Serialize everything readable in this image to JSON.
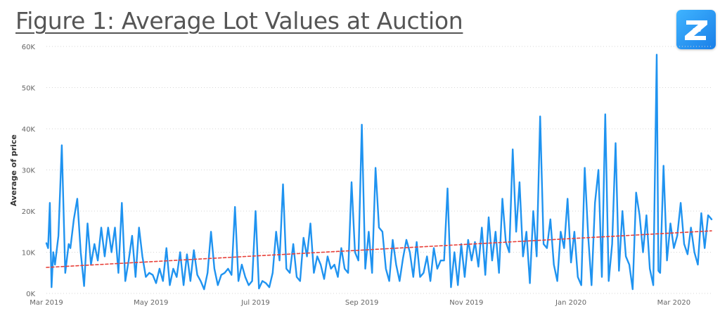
{
  "header": {
    "title": "Figure 1: Average Lot Values at Auction",
    "logo_icon": "z-logo-icon"
  },
  "chart_data": {
    "type": "line",
    "title": "Figure 1: Average Lot Values at Auction",
    "xlabel": "",
    "ylabel": "Average of price",
    "ylim": [
      0,
      60000
    ],
    "yticks": [
      0,
      10000,
      20000,
      30000,
      40000,
      50000,
      60000
    ],
    "ytick_labels": [
      "0K",
      "10K",
      "20K",
      "30K",
      "40K",
      "50K",
      "60K"
    ],
    "xlim": [
      "2019-03-01",
      "2020-03-23"
    ],
    "xticks": [
      "2019-03-01",
      "2019-05-01",
      "2019-07-01",
      "2019-09-01",
      "2019-11-01",
      "2020-01-01",
      "2020-03-01"
    ],
    "xtick_labels": [
      "Mar 2019",
      "May 2019",
      "Jul 2019",
      "Sep 2019",
      "Nov 2019",
      "Jan 2020",
      "Mar 2020"
    ],
    "grid": "horizontal dotted",
    "series": [
      {
        "color": "#1f93f0",
        "x": [
          "2019-03-01",
          "2019-03-02",
          "2019-03-03",
          "2019-03-04",
          "2019-03-05",
          "2019-03-06",
          "2019-03-08",
          "2019-03-10",
          "2019-03-12",
          "2019-03-14",
          "2019-03-15",
          "2019-03-17",
          "2019-03-19",
          "2019-03-21",
          "2019-03-23",
          "2019-03-25",
          "2019-03-27",
          "2019-03-29",
          "2019-03-31",
          "2019-04-02",
          "2019-04-04",
          "2019-04-06",
          "2019-04-08",
          "2019-04-10",
          "2019-04-12",
          "2019-04-14",
          "2019-04-16",
          "2019-04-18",
          "2019-04-20",
          "2019-04-22",
          "2019-04-24",
          "2019-04-26",
          "2019-04-28",
          "2019-04-30",
          "2019-05-02",
          "2019-05-04",
          "2019-05-06",
          "2019-05-08",
          "2019-05-10",
          "2019-05-12",
          "2019-05-14",
          "2019-05-16",
          "2019-05-18",
          "2019-05-20",
          "2019-05-22",
          "2019-05-24",
          "2019-05-26",
          "2019-05-28",
          "2019-05-30",
          "2019-06-01",
          "2019-06-03",
          "2019-06-05",
          "2019-06-07",
          "2019-06-09",
          "2019-06-11",
          "2019-06-13",
          "2019-06-15",
          "2019-06-17",
          "2019-06-19",
          "2019-06-21",
          "2019-06-23",
          "2019-06-25",
          "2019-06-27",
          "2019-06-29",
          "2019-07-01",
          "2019-07-03",
          "2019-07-05",
          "2019-07-07",
          "2019-07-09",
          "2019-07-11",
          "2019-07-13",
          "2019-07-15",
          "2019-07-17",
          "2019-07-19",
          "2019-07-21",
          "2019-07-23",
          "2019-07-25",
          "2019-07-27",
          "2019-07-29",
          "2019-07-31",
          "2019-08-02",
          "2019-08-04",
          "2019-08-06",
          "2019-08-08",
          "2019-08-10",
          "2019-08-12",
          "2019-08-14",
          "2019-08-16",
          "2019-08-18",
          "2019-08-20",
          "2019-08-22",
          "2019-08-24",
          "2019-08-26",
          "2019-08-28",
          "2019-08-30",
          "2019-09-01",
          "2019-09-03",
          "2019-09-05",
          "2019-09-07",
          "2019-09-09",
          "2019-09-11",
          "2019-09-13",
          "2019-09-15",
          "2019-09-17",
          "2019-09-19",
          "2019-09-21",
          "2019-09-23",
          "2019-09-25",
          "2019-09-27",
          "2019-09-29",
          "2019-10-01",
          "2019-10-03",
          "2019-10-05",
          "2019-10-07",
          "2019-10-09",
          "2019-10-11",
          "2019-10-13",
          "2019-10-15",
          "2019-10-17",
          "2019-10-19",
          "2019-10-21",
          "2019-10-23",
          "2019-10-25",
          "2019-10-27",
          "2019-10-29",
          "2019-10-31",
          "2019-11-02",
          "2019-11-04",
          "2019-11-06",
          "2019-11-08",
          "2019-11-10",
          "2019-11-12",
          "2019-11-14",
          "2019-11-16",
          "2019-11-18",
          "2019-11-20",
          "2019-11-22",
          "2019-11-24",
          "2019-11-26",
          "2019-11-28",
          "2019-11-30",
          "2019-12-02",
          "2019-12-04",
          "2019-12-06",
          "2019-12-08",
          "2019-12-10",
          "2019-12-12",
          "2019-12-14",
          "2019-12-16",
          "2019-12-18",
          "2019-12-20",
          "2019-12-22",
          "2019-12-24",
          "2019-12-26",
          "2019-12-28",
          "2019-12-30",
          "2020-01-01",
          "2020-01-03",
          "2020-01-05",
          "2020-01-07",
          "2020-01-09",
          "2020-01-11",
          "2020-01-13",
          "2020-01-15",
          "2020-01-17",
          "2020-01-19",
          "2020-01-21",
          "2020-01-23",
          "2020-01-25",
          "2020-01-27",
          "2020-01-29",
          "2020-01-31",
          "2020-02-02",
          "2020-02-04",
          "2020-02-06",
          "2020-02-08",
          "2020-02-10",
          "2020-02-12",
          "2020-02-14",
          "2020-02-16",
          "2020-02-18",
          "2020-02-20",
          "2020-02-21",
          "2020-02-22",
          "2020-02-24",
          "2020-02-26",
          "2020-02-28",
          "2020-03-01",
          "2020-03-03",
          "2020-03-05",
          "2020-03-07",
          "2020-03-09",
          "2020-03-11",
          "2020-03-13",
          "2020-03-15",
          "2020-03-17",
          "2020-03-19",
          "2020-03-21",
          "2020-03-23"
        ],
        "y": [
          12200,
          11000,
          22000,
          1500,
          10000,
          7000,
          14000,
          36000,
          5000,
          12000,
          11000,
          18000,
          23000,
          10000,
          1800,
          17000,
          7000,
          12000,
          8000,
          16000,
          9000,
          16000,
          10000,
          16000,
          5000,
          22000,
          3000,
          8000,
          14000,
          4000,
          16000,
          9000,
          4000,
          5000,
          4500,
          2500,
          6000,
          3000,
          11000,
          2000,
          6000,
          4000,
          10000,
          2000,
          9500,
          3000,
          10500,
          4500,
          3000,
          1000,
          5000,
          15000,
          6000,
          2000,
          4500,
          5000,
          6000,
          4500,
          21000,
          3000,
          7000,
          4000,
          2000,
          3000,
          20000,
          1200,
          3000,
          2500,
          1500,
          5000,
          15000,
          8000,
          26500,
          6000,
          5000,
          12000,
          4000,
          3000,
          13500,
          9000,
          17000,
          5000,
          9000,
          7000,
          3500,
          9000,
          6000,
          7000,
          4000,
          11000,
          6000,
          5000,
          27000,
          10000,
          8000,
          41000,
          6000,
          15000,
          5000,
          30500,
          16000,
          15000,
          6000,
          3000,
          13000,
          7000,
          3000,
          8500,
          13000,
          10000,
          4000,
          12500,
          4000,
          5000,
          9000,
          3000,
          11000,
          6000,
          8000,
          8000,
          25500,
          1500,
          10000,
          2000,
          12000,
          4000,
          13000,
          8000,
          12500,
          6500,
          16000,
          4500,
          18500,
          8000,
          15000,
          5000,
          23000,
          12500,
          10000,
          35000,
          15000,
          27000,
          9000,
          15000,
          2500,
          20000,
          9000,
          43000,
          12000,
          11000,
          18000,
          7000,
          3000,
          15000,
          11000,
          23000,
          7500,
          15000,
          4000,
          2000,
          30500,
          14000,
          2000,
          22000,
          30000,
          4000,
          43500,
          3000,
          12000,
          36500,
          5500,
          20000,
          9000,
          7000,
          1000,
          24500,
          19000,
          10000,
          19000,
          6000,
          2000,
          58000,
          5500,
          5000,
          31000,
          8000,
          17000,
          11000,
          14000,
          22000,
          12000,
          9500,
          16000,
          10000,
          7000,
          19500,
          11000,
          19000,
          18000
        ]
      },
      {
        "style": "dashed",
        "color": "#e8413a",
        "x": [
          "2019-03-01",
          "2020-03-23"
        ],
        "y": [
          6300,
          15200
        ]
      }
    ]
  }
}
